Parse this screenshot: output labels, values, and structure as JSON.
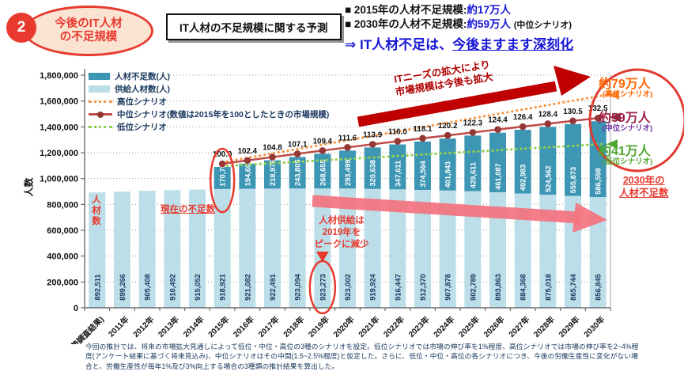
{
  "header": {
    "badge_number": "2",
    "badge_title": "今後のIT人材\nの不足規模",
    "box_title": "IT人材の不足規模に関する予測",
    "bullet1_label": "■ 2015年の人材不足規模:",
    "bullet1_value": "約17万人",
    "bullet2_label": "■ 2030年の人材不足規模:",
    "bullet2_value": "約59万人",
    "bullet2_suffix": "(中位シナリオ)",
    "conclusion_prefix": "⇒ IT人材不足は、",
    "conclusion_underlined": "今後ますます深刻化"
  },
  "chart_data": {
    "type": "bar",
    "subtype": "stacked-bar-with-index-lines",
    "ylabel": "人数",
    "ylim": [
      0,
      1800000
    ],
    "ytick_step": 200000,
    "categories": [
      "2010年(国勢調査結果)",
      "2011年",
      "2012年",
      "2013年",
      "2014年",
      "2015年",
      "2016年",
      "2017年",
      "2018年",
      "2019年",
      "2020年",
      "2021年",
      "2022年",
      "2023年",
      "2024年",
      "2025年",
      "2026年",
      "2027年",
      "2028年",
      "2029年",
      "2030年"
    ],
    "series": [
      {
        "name": "人材不足数(人)",
        "color": "#3d96b4",
        "values": [
          null,
          null,
          null,
          null,
          null,
          170700,
          194608,
          218976,
          243805,
          268655,
          293499,
          320638,
          347611,
          374564,
          401843,
          429611,
          461087,
          492983,
          524562,
          555873,
          586598
        ]
      },
      {
        "name": "供給人材数(人)",
        "color": "#bcdee8",
        "values": [
          892511,
          899266,
          905408,
          910492,
          915052,
          918921,
          921082,
          922491,
          923094,
          923273,
          923002,
          919924,
          916447,
          912370,
          907878,
          902789,
          893863,
          884368,
          875018,
          865744,
          856845
        ]
      }
    ],
    "lines": {
      "high": {
        "name": "高位シナリオ",
        "color": "#f79646",
        "style": "dotted",
        "end_label": "約79万人",
        "end_sublabel": "(高位シナリオ)",
        "end_value_2030": 790000
      },
      "mid": {
        "name": "中位シナリオ",
        "legend_label": "中位シナリオ(数値は2015年を100としたときの市場規模)",
        "color": "#be4b48",
        "marker_color": "#953735",
        "index_start_year": "2015年",
        "index_values": [
          100.0,
          102.4,
          104.8,
          107.1,
          109.4,
          111.6,
          113.9,
          116.0,
          118.1,
          120.2,
          122.3,
          124.4,
          126.4,
          128.4,
          130.5,
          132.5
        ],
        "end_label": "約59万人",
        "end_sublabel": "(中位シナリオ)",
        "end_value_2030": 590000
      },
      "low": {
        "name": "低位シナリオ",
        "color": "#92d050",
        "style": "dotted",
        "end_label": "約41万人",
        "end_sublabel": "(低位シナリオ)",
        "end_value_2030": 410000
      }
    },
    "grid": true,
    "legend_position": "top-left"
  },
  "annotations": {
    "market_expand": "ITニーズの拡大により\n市場規模は今後も拡大",
    "current_shortage": "現在の不足数",
    "supply_peak": "人材供給は\n2019年を\nピークに減少",
    "shortage_2030": "2030年の\n人材不足数",
    "bar_inner_label": "人材数"
  },
  "footnote": "今回の推計では、将来の市場拡大見通しによって低位・中位・高位の3種のシナリオを設定。低位シナリオでは市場の伸び率を1%程度、高位シナリオでは市場の伸び率を2~4%程度(アンケート結果に基づく将来見込み)、中位シナリオはその中間(1.5~2.5%程度)と仮定した。さらに、低位・中位・高位の各シナリオにつき、今後の労働生産性に変化がない場合と、労働生産性が毎年1%及び3%向上する場合の3種類の推計結果を算出した。"
}
